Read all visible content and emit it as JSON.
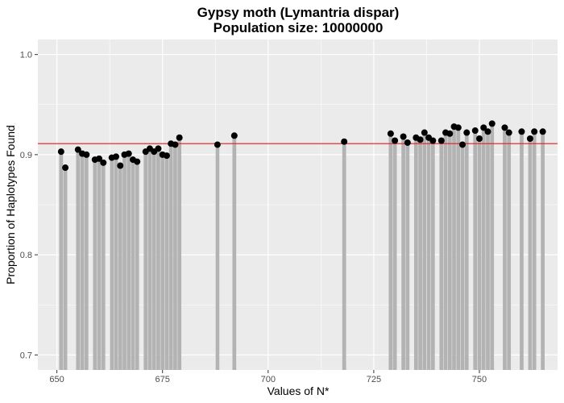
{
  "chart_data": {
    "type": "bar",
    "title": "Gypsy moth (Lymantria dispar)",
    "subtitle": "Population size: 10000000",
    "xlabel": "Values of N*",
    "ylabel": "Proportion of Haplotypes Found",
    "xlim": [
      645.5,
      768.5
    ],
    "ylim": [
      0.685,
      1.015
    ],
    "xticks": [
      650,
      675,
      700,
      725,
      750
    ],
    "yticks": [
      0.7,
      0.8,
      0.9,
      1.0
    ],
    "xtick_labels": [
      "650",
      "675",
      "700",
      "725",
      "750"
    ],
    "ytick_labels": [
      "0.7",
      "0.8",
      "0.9",
      "1.0"
    ],
    "grid": true,
    "reference_line": {
      "y": 0.911,
      "color": "#e41a1c"
    },
    "colors": {
      "panel": "#ebebeb",
      "grid": "#ffffff",
      "bar": "#b3b3b3",
      "point": "#000000"
    },
    "x": [
      651,
      652,
      655,
      656,
      657,
      659,
      660,
      661,
      663,
      664,
      665,
      666,
      667,
      668,
      669,
      671,
      672,
      673,
      674,
      675,
      676,
      677,
      678,
      679,
      688,
      692,
      718,
      729,
      730,
      732,
      733,
      735,
      736,
      737,
      738,
      739,
      741,
      742,
      743,
      744,
      745,
      746,
      747,
      749,
      750,
      751,
      752,
      753,
      756,
      757,
      760,
      762,
      763,
      765
    ],
    "y": [
      0.903,
      0.887,
      0.905,
      0.901,
      0.9,
      0.895,
      0.896,
      0.892,
      0.897,
      0.898,
      0.889,
      0.9,
      0.901,
      0.895,
      0.893,
      0.903,
      0.906,
      0.903,
      0.906,
      0.9,
      0.899,
      0.911,
      0.91,
      0.917,
      0.91,
      0.919,
      0.913,
      0.921,
      0.914,
      0.918,
      0.912,
      0.917,
      0.915,
      0.922,
      0.917,
      0.914,
      0.914,
      0.922,
      0.921,
      0.928,
      0.927,
      0.91,
      0.922,
      0.924,
      0.916,
      0.927,
      0.923,
      0.931,
      0.927,
      0.922,
      0.923,
      0.916,
      0.923,
      0.923
    ]
  }
}
